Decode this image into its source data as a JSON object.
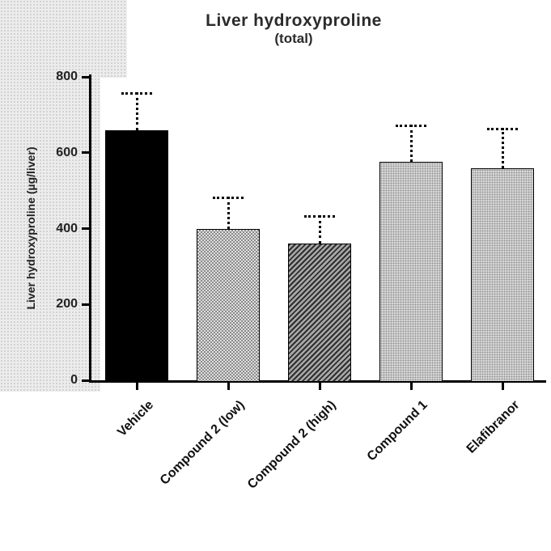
{
  "title": {
    "line1": "Liver hydroxyproline",
    "line2": "(total)"
  },
  "y_axis": {
    "label": "Liver hydroxyproline (µg/liver)",
    "tick_labels": [
      "0",
      "200",
      "400",
      "600",
      "800"
    ]
  },
  "colors": {
    "bar_black": "#000000",
    "bar_gray_mid": "#8a8a8a",
    "bar_gray_light": "#b5b5b5",
    "axis": "#000000",
    "backdrop_gray": "#ececec"
  },
  "chart_data": {
    "type": "bar",
    "title": "Liver hydroxyproline (total)",
    "xlabel": "",
    "ylabel": "Liver hydroxyproline (µg/liver)",
    "categories": [
      "Vehicle",
      "Compound 2 (low)",
      "Compound 2 (high)",
      "Compound 1",
      "Elafibranor"
    ],
    "values": [
      660,
      400,
      360,
      575,
      560
    ],
    "error_up": [
      100,
      85,
      75,
      100,
      105
    ],
    "bar_styles": [
      "solid-black",
      "checker",
      "diagonal",
      "dotted",
      "dotted"
    ],
    "ylim": [
      0,
      800
    ],
    "yticks": [
      0,
      200,
      400,
      600,
      800
    ],
    "grid": false,
    "legend_position": "none"
  }
}
